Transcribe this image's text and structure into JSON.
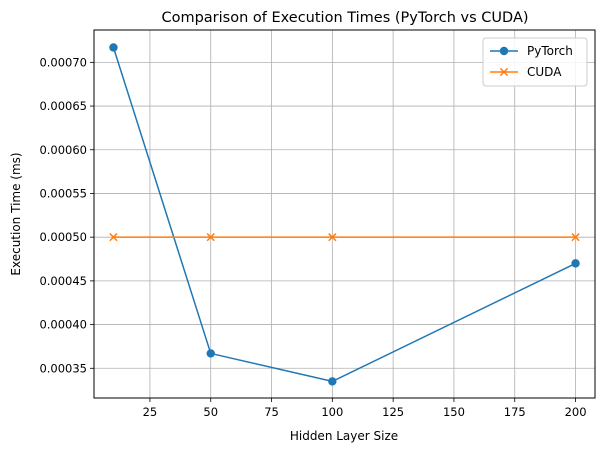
{
  "chart_data": {
    "type": "line",
    "title": "Comparison of Execution Times (PyTorch vs CUDA)",
    "xlabel": "Hidden Layer Size",
    "ylabel": "Execution Time (ms)",
    "x": [
      10,
      50,
      100,
      200
    ],
    "xlim": [
      2,
      208
    ],
    "ylim": [
      0.000316,
      0.000737
    ],
    "xticks": [
      25,
      50,
      75,
      100,
      125,
      150,
      175,
      200
    ],
    "yticks": [
      0.00035,
      0.0004,
      0.00045,
      0.0005,
      0.00055,
      0.0006,
      0.00065,
      0.0007
    ],
    "xtick_labels": [
      "25",
      "50",
      "75",
      "100",
      "125",
      "150",
      "175",
      "200"
    ],
    "ytick_labels": [
      "0.00035",
      "0.00040",
      "0.00045",
      "0.00050",
      "0.00055",
      "0.00060",
      "0.00065",
      "0.00070"
    ],
    "grid": true,
    "legend_position": "top-right",
    "series": [
      {
        "name": "PyTorch",
        "values": [
          0.000717,
          0.000367,
          0.000335,
          0.00047
        ],
        "color": "#1f77b4",
        "marker": "circle"
      },
      {
        "name": "CUDA",
        "values": [
          0.0005,
          0.0005,
          0.0005,
          0.0005
        ],
        "color": "#ff7f0e",
        "marker": "x"
      }
    ]
  }
}
